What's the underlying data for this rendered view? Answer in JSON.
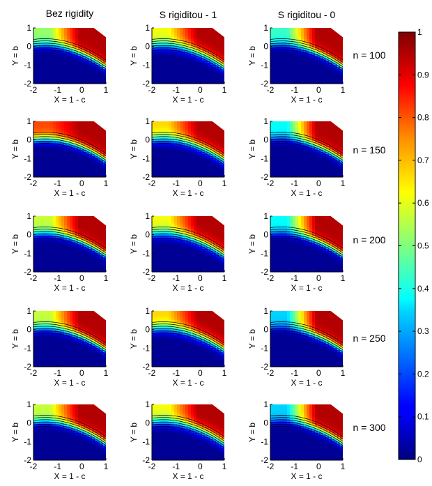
{
  "chart_data": {
    "type": "heatmap",
    "column_titles": [
      "Bez rigidity",
      "S rigiditou - 1",
      "S rigiditou - 0"
    ],
    "row_labels": [
      "n = 100",
      "n = 150",
      "n = 200",
      "n = 250",
      "n = 300"
    ],
    "xlabel": "X = 1 - c",
    "ylabel": "Y = b",
    "xlim": [
      -2,
      1
    ],
    "ylim": [
      -2,
      1
    ],
    "xticks": [
      "-2",
      "-1",
      "0",
      "1"
    ],
    "yticks": [
      "1",
      "0",
      "-1",
      "-2"
    ],
    "colorbar": {
      "ticks": [
        "1",
        "0.9",
        "0.8",
        "0.7",
        "0.6",
        "0.5",
        "0.4",
        "0.3",
        "0.2",
        "0.1",
        "0"
      ],
      "colormap": "jet",
      "range": [
        0,
        1
      ]
    },
    "panels": [
      {
        "column": "Bez rigidity",
        "row": "n = 100",
        "peak": 0.95,
        "edge": 0.55,
        "transition": 1.8
      },
      {
        "column": "S rigiditou - 1",
        "row": "n = 100",
        "peak": 0.95,
        "edge": 0.65,
        "transition": 1.5
      },
      {
        "column": "S rigiditou - 0",
        "row": "n = 100",
        "peak": 0.95,
        "edge": 0.45,
        "transition": 1.8
      },
      {
        "column": "Bez rigidity",
        "row": "n = 150",
        "peak": 0.95,
        "edge": 0.85,
        "transition": 1.8
      },
      {
        "column": "S rigiditou - 1",
        "row": "n = 150",
        "peak": 0.95,
        "edge": 0.7,
        "transition": 1.5
      },
      {
        "column": "S rigiditou - 0",
        "row": "n = 150",
        "peak": 0.95,
        "edge": 0.4,
        "transition": 1.8
      },
      {
        "column": "Bez rigidity",
        "row": "n = 200",
        "peak": 0.95,
        "edge": 0.6,
        "transition": 1.8
      },
      {
        "column": "S rigiditou - 1",
        "row": "n = 200",
        "peak": 0.95,
        "edge": 0.65,
        "transition": 1.5
      },
      {
        "column": "S rigiditou - 0",
        "row": "n = 200",
        "peak": 0.95,
        "edge": 0.4,
        "transition": 1.8
      },
      {
        "column": "Bez rigidity",
        "row": "n = 250",
        "peak": 0.95,
        "edge": 0.6,
        "transition": 1.8
      },
      {
        "column": "S rigiditou - 1",
        "row": "n = 250",
        "peak": 0.95,
        "edge": 0.7,
        "transition": 1.5
      },
      {
        "column": "S rigiditou - 0",
        "row": "n = 250",
        "peak": 0.95,
        "edge": 0.35,
        "transition": 1.8
      },
      {
        "column": "Bez rigidity",
        "row": "n = 300",
        "peak": 0.95,
        "edge": 0.6,
        "transition": 1.8
      },
      {
        "column": "S rigiditou - 1",
        "row": "n = 300",
        "peak": 0.95,
        "edge": 0.65,
        "transition": 1.5
      },
      {
        "column": "S rigiditou - 0",
        "row": "n = 300",
        "peak": 0.95,
        "edge": 0.35,
        "transition": 1.8
      }
    ]
  }
}
